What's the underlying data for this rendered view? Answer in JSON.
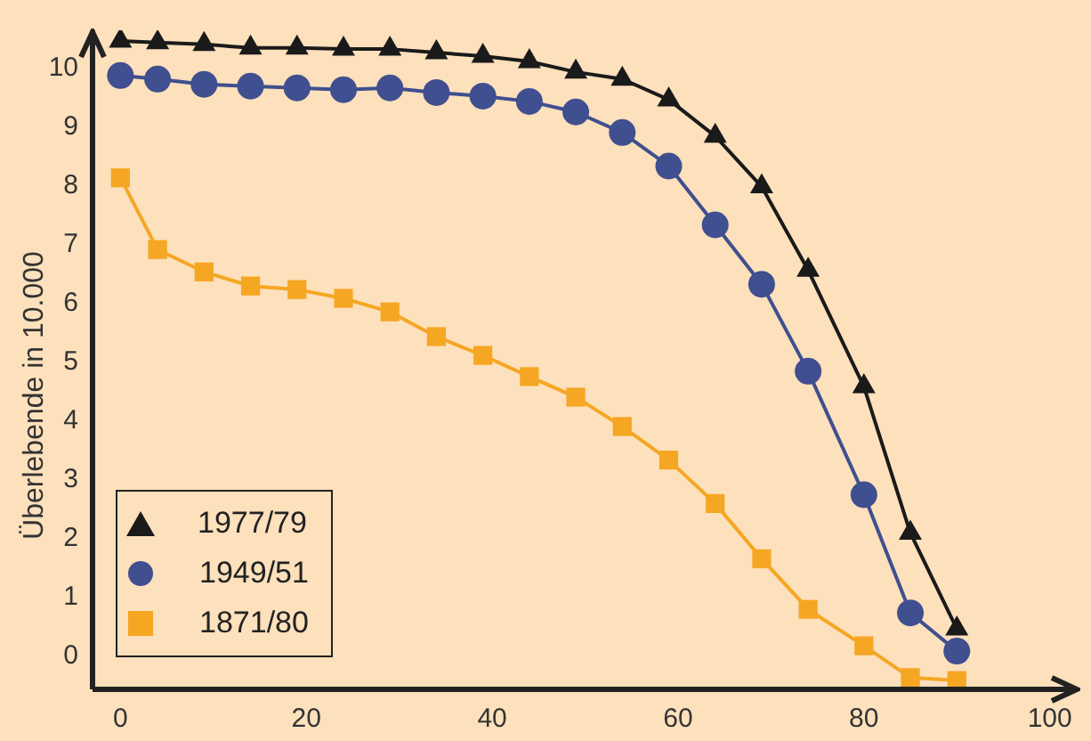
{
  "chart_data": {
    "type": "line",
    "ylabel": "Überlebende in 10.000",
    "xlim": [
      -3,
      103
    ],
    "xticks": [
      0,
      20,
      40,
      60,
      80,
      100
    ],
    "ylim": [
      -0.56,
      10.65
    ],
    "yticks": [
      0,
      1,
      2,
      3,
      4,
      5,
      6,
      7,
      8,
      9,
      10
    ],
    "grid": false,
    "legend": "bottom left",
    "series": [
      {
        "name": "1977/79",
        "color": "#1a1a1a",
        "marker": "triangle",
        "x": [
          0,
          4,
          9,
          14,
          19,
          24,
          29,
          34,
          39,
          44,
          49,
          54,
          59,
          64,
          69,
          74,
          80,
          85,
          90
        ],
        "values": [
          10.47,
          10.44,
          10.41,
          10.35,
          10.35,
          10.33,
          10.33,
          10.27,
          10.21,
          10.12,
          9.94,
          9.82,
          9.47,
          8.85,
          7.99,
          6.57,
          4.59,
          2.1,
          0.47
        ]
      },
      {
        "name": "1949/51",
        "color": "#3f4f8f",
        "marker": "circle",
        "x": [
          0,
          4,
          9,
          14,
          19,
          24,
          29,
          34,
          39,
          44,
          49,
          54,
          59,
          64,
          69,
          74,
          80,
          85,
          90
        ],
        "values": [
          9.88,
          9.82,
          9.73,
          9.7,
          9.67,
          9.64,
          9.67,
          9.59,
          9.53,
          9.44,
          9.26,
          8.91,
          8.34,
          7.34,
          6.33,
          4.85,
          2.75,
          0.74,
          0.09
        ]
      },
      {
        "name": "1871/80",
        "color": "#f5a623",
        "marker": "square",
        "x": [
          0,
          4,
          9,
          14,
          19,
          24,
          29,
          34,
          39,
          44,
          49,
          54,
          59,
          64,
          69,
          74,
          80,
          85,
          90
        ],
        "values": [
          8.14,
          6.92,
          6.54,
          6.3,
          6.24,
          6.09,
          5.86,
          5.44,
          5.12,
          4.76,
          4.41,
          3.91,
          3.34,
          2.6,
          1.66,
          0.8,
          0.18,
          -0.36,
          -0.41
        ]
      }
    ]
  }
}
